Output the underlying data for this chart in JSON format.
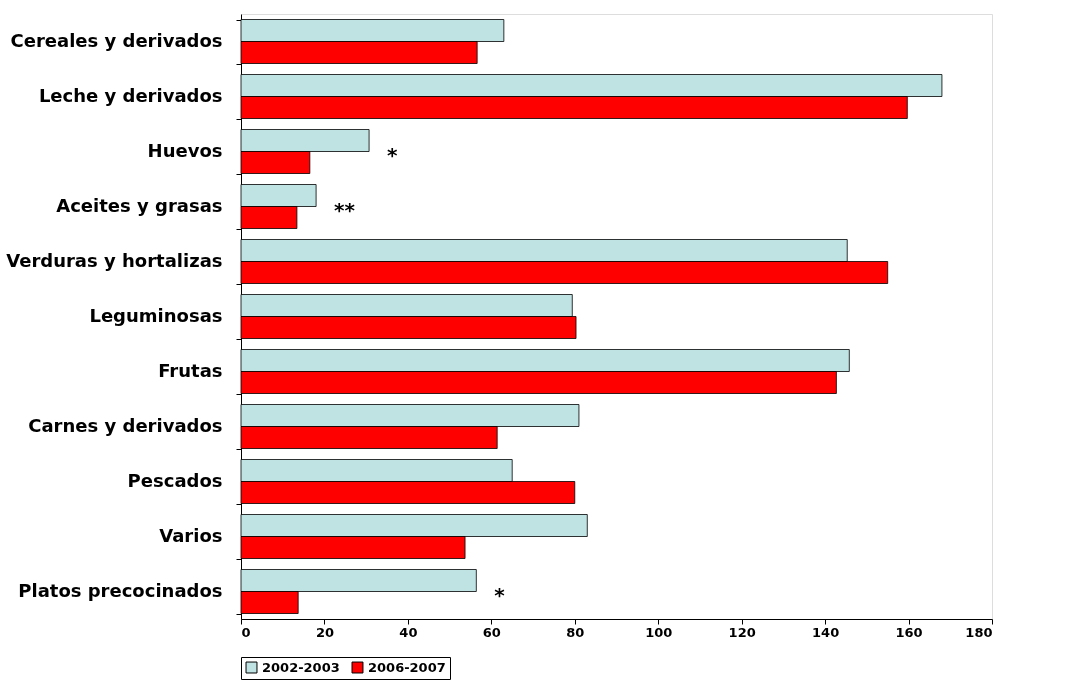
{
  "chart_data": {
    "type": "bar",
    "orientation": "horizontal",
    "categories": [
      "Cereales y derivados",
      "Leche y derivados",
      "Huevos",
      "Aceites y grasas",
      "Verduras y hortalizas",
      "Leguminosas",
      "Frutas",
      "Carnes y derivados",
      "Pescados",
      "Varios",
      "Platos precocinados"
    ],
    "series": [
      {
        "name": "2002-2003",
        "color": "#bfe3e3",
        "values": [
          63,
          168,
          30.7,
          18,
          145.3,
          79.4,
          145.8,
          81,
          65,
          83,
          56.4
        ]
      },
      {
        "name": "2006-2007",
        "color": "#ff0000",
        "values": [
          56.6,
          159.7,
          16.5,
          13.4,
          155,
          80.3,
          142.7,
          61.4,
          80,
          53.7,
          13.7
        ]
      }
    ],
    "xlim": [
      0,
      180
    ],
    "xticks": [
      0,
      20,
      40,
      60,
      80,
      100,
      120,
      140,
      160,
      180
    ],
    "grid": false,
    "legend": "bottom",
    "annotations": [
      {
        "text": "*",
        "x": 30.7,
        "y": "Huevos"
      },
      {
        "text": "**",
        "x": 18,
        "y": "Aceites y grasas"
      },
      {
        "text": "*",
        "x": 56.4,
        "y": "Platos precocinados"
      }
    ]
  }
}
